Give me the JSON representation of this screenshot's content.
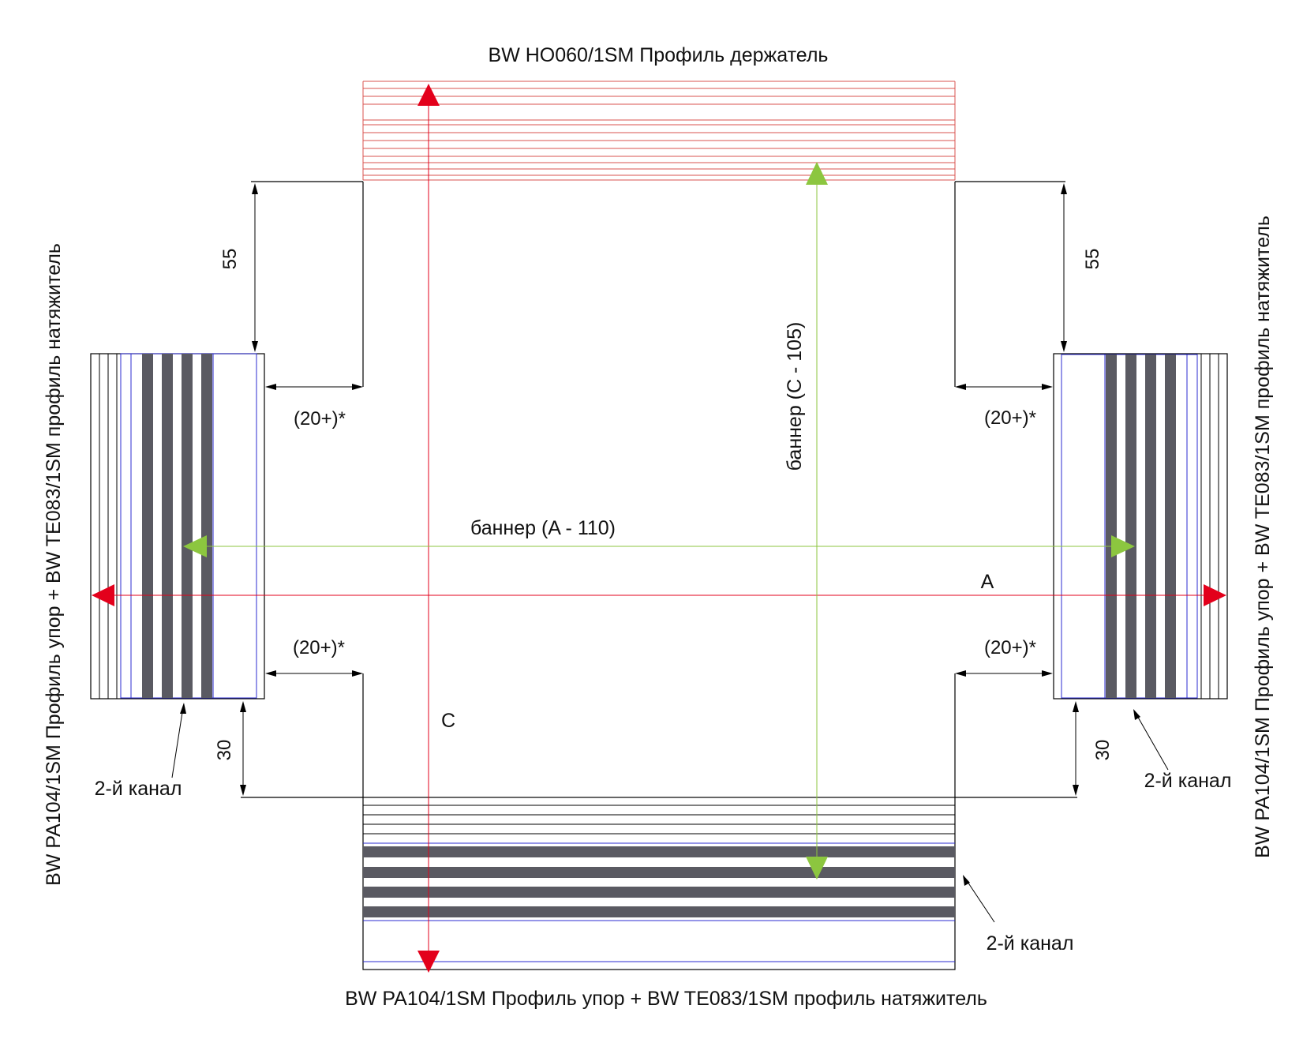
{
  "labels": {
    "top_profile": "BW HO060/1SM Профиль держатель",
    "bottom_profile": "BW PA104/1SM Профиль упор + BW TE083/1SM профиль натяжитель",
    "left_profile": "BW PA104/1SM Профиль упор + BW TE083/1SM профиль натяжитель",
    "right_profile": "BW PA104/1SM Профиль упор + BW TE083/1SM профиль натяжитель",
    "banner_width": "баннер (A - 110)",
    "banner_height": "баннер (C - 105)",
    "dim_a": "A",
    "dim_c": "C",
    "gap_top_left": "(20+)*",
    "gap_top_right": "(20+)*",
    "gap_bottom_left": "(20+)*",
    "gap_bottom_right": "(20+)*",
    "dim_55_left": "55",
    "dim_55_right": "55",
    "dim_30_left": "30",
    "dim_30_right": "30",
    "channel_left": "2-й канал",
    "channel_right": "2-й канал",
    "channel_bottom": "2-й канал"
  },
  "colors": {
    "red_dimension": "#e3001b",
    "green_banner": "#8cc63f",
    "profile_red": "#d9534f",
    "channel_dark": "#5a5a62",
    "inner_blue": "#2b2bd0",
    "outline": "#000000"
  }
}
